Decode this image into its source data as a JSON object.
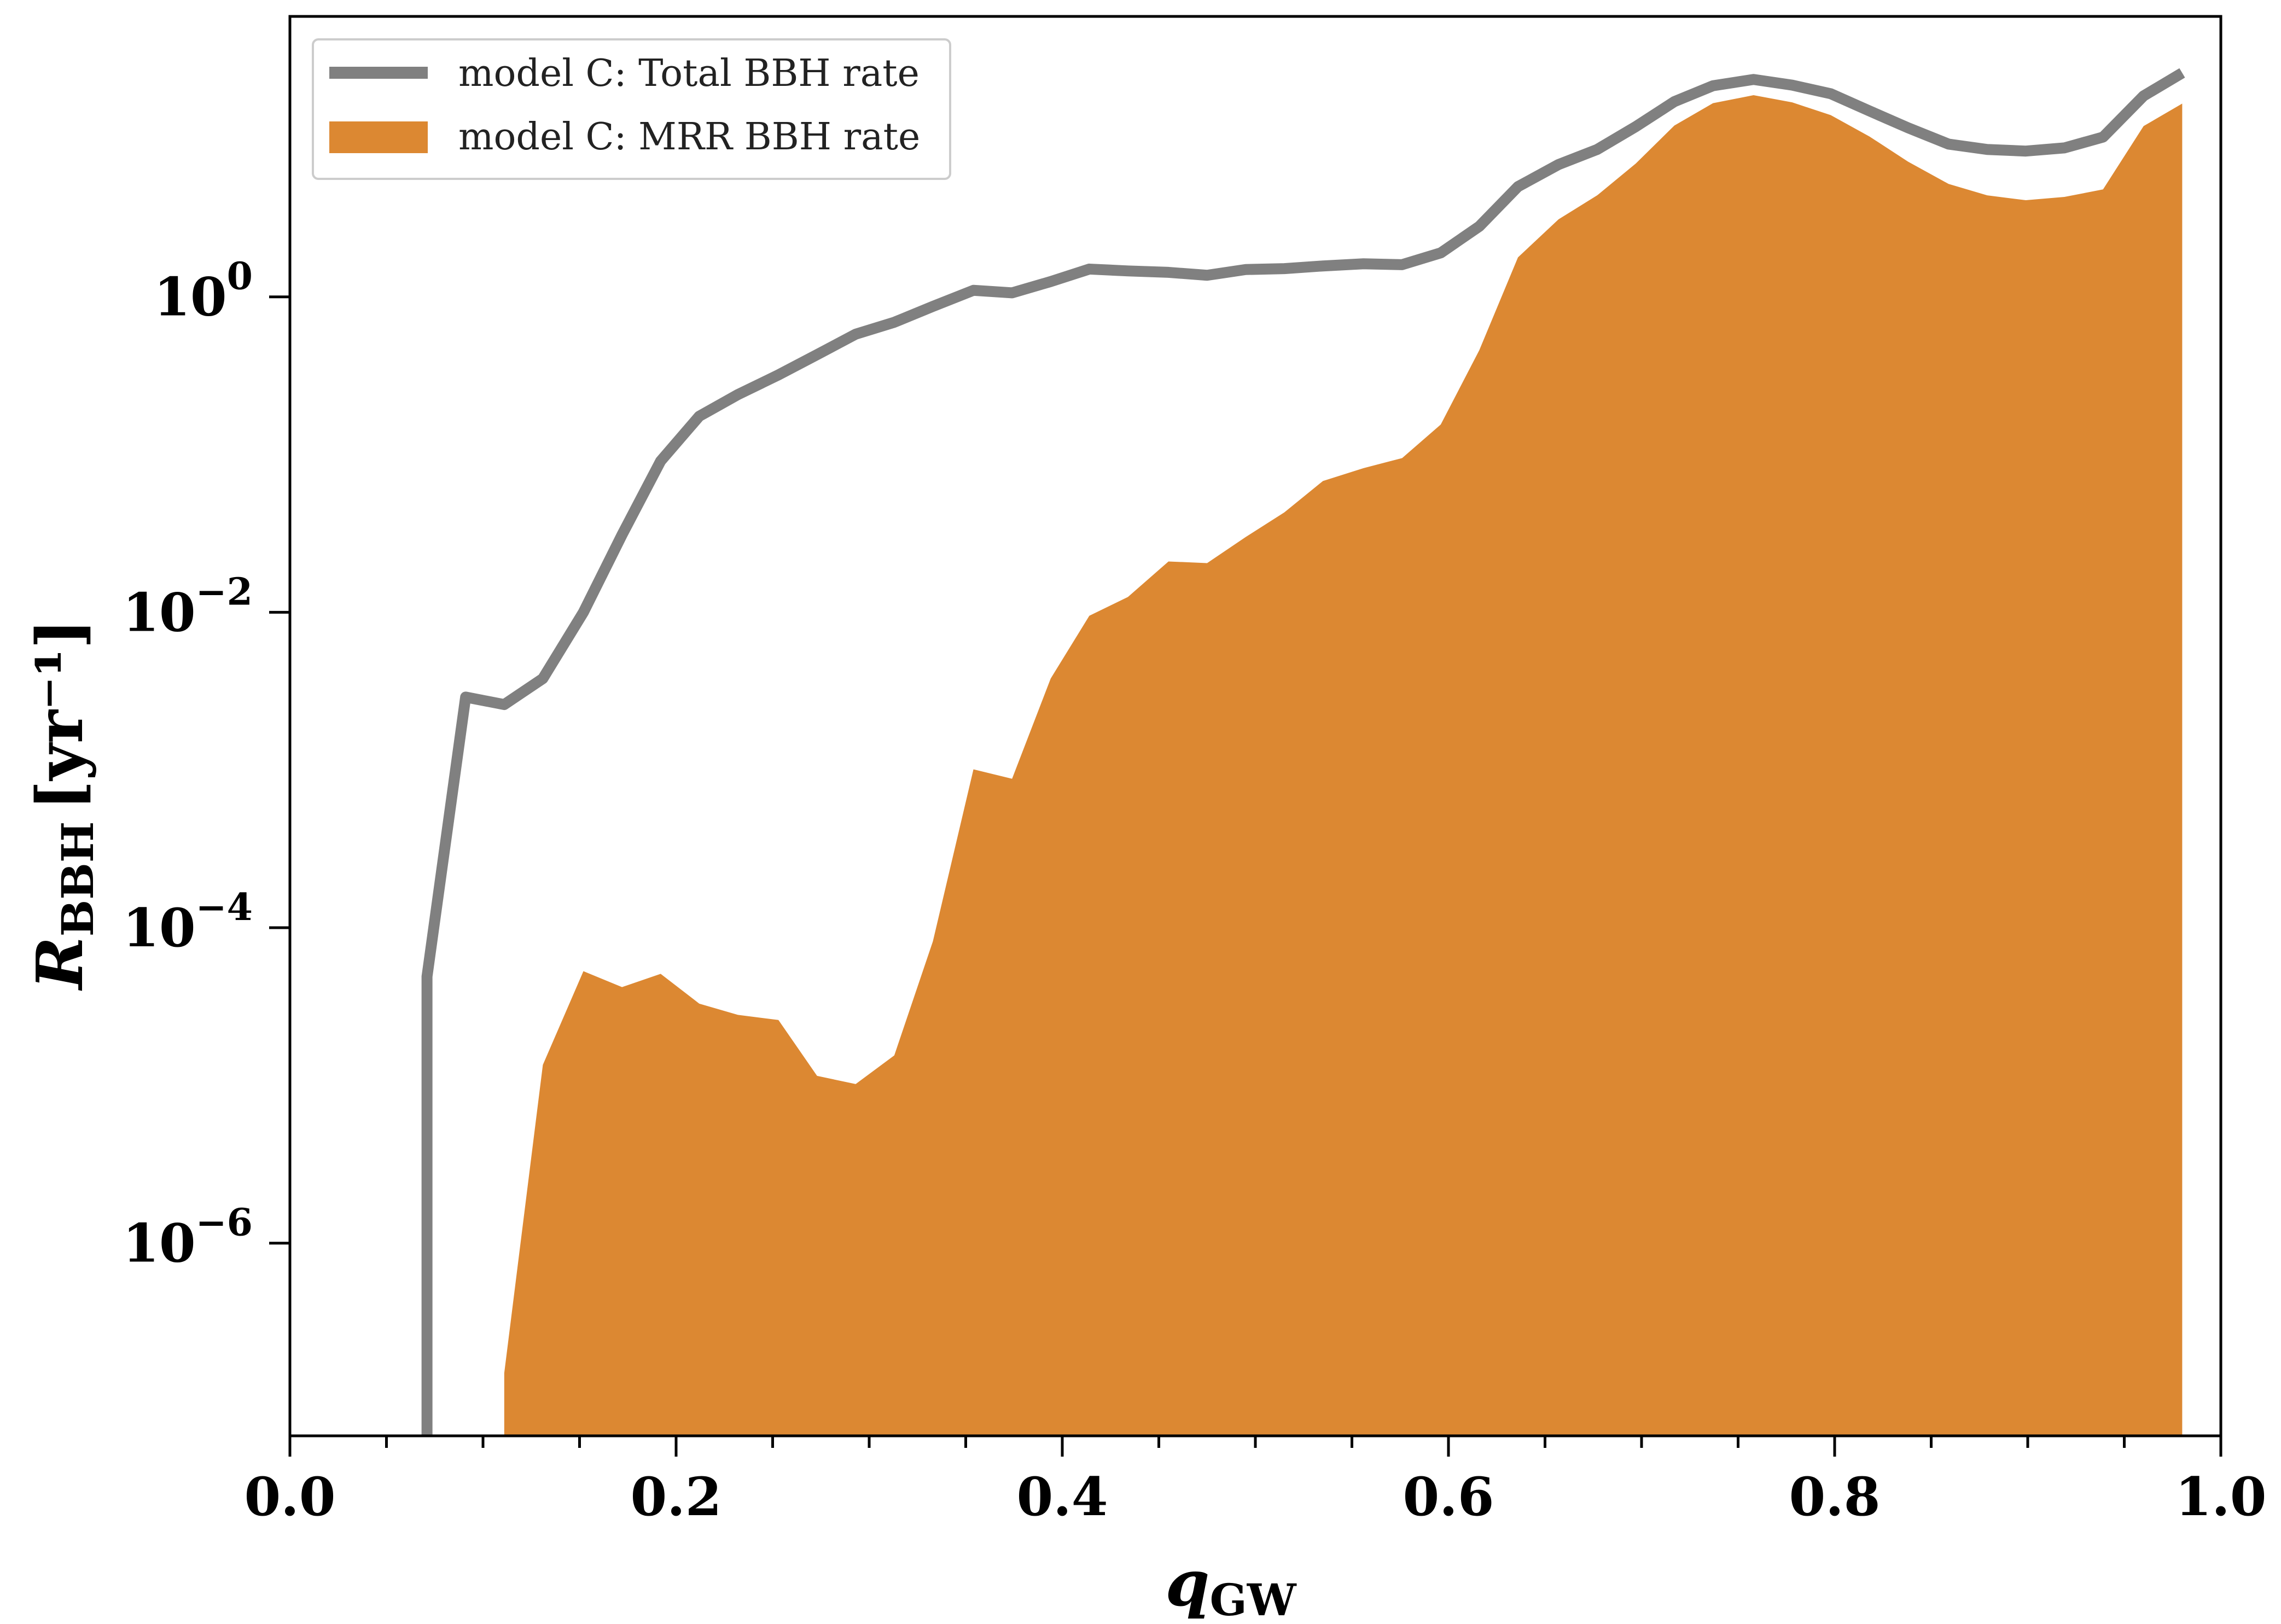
{
  "chart_data": {
    "type": "area",
    "xlabel": "q",
    "xlabel_sub": "GW",
    "ylabel": "R",
    "ylabel_sub": "BBH",
    "ylabel_unit": "[yr⁻¹]",
    "xlim": [
      0.0,
      1.0
    ],
    "ylim": [
      6e-08,
      60
    ],
    "yscale": "log",
    "x_ticks": [
      {
        "v": 0.0,
        "label": "0.0"
      },
      {
        "v": 0.2,
        "label": "0.2"
      },
      {
        "v": 0.4,
        "label": "0.4"
      },
      {
        "v": 0.6,
        "label": "0.6"
      },
      {
        "v": 0.8,
        "label": "0.8"
      },
      {
        "v": 1.0,
        "label": "1.0"
      }
    ],
    "y_ticks": [
      {
        "v": 1,
        "base": "10",
        "exp": "0"
      },
      {
        "v": 0.01,
        "base": "10",
        "exp": "−2"
      },
      {
        "v": 0.0001,
        "base": "10",
        "exp": "−4"
      },
      {
        "v": 1e-06,
        "base": "10",
        "exp": "−6"
      }
    ],
    "grid": false,
    "legend_position": "upper-left",
    "series": [
      {
        "name": "model C: Total BBH rate",
        "kind": "line",
        "color": "#808080",
        "points": [
          [
            0.071,
            6e-08
          ],
          [
            0.071,
            4.9e-05
          ],
          [
            0.091,
            0.0029
          ],
          [
            0.111,
            0.0026
          ],
          [
            0.131,
            0.0038
          ],
          [
            0.152,
            0.01
          ],
          [
            0.172,
            0.031
          ],
          [
            0.192,
            0.091
          ],
          [
            0.212,
            0.175
          ],
          [
            0.232,
            0.24
          ],
          [
            0.253,
            0.32
          ],
          [
            0.273,
            0.43
          ],
          [
            0.293,
            0.58
          ],
          [
            0.313,
            0.69
          ],
          [
            0.333,
            0.87
          ],
          [
            0.354,
            1.1
          ],
          [
            0.374,
            1.06
          ],
          [
            0.394,
            1.25
          ],
          [
            0.414,
            1.5
          ],
          [
            0.434,
            1.46
          ],
          [
            0.455,
            1.43
          ],
          [
            0.475,
            1.37
          ],
          [
            0.495,
            1.49
          ],
          [
            0.515,
            1.51
          ],
          [
            0.535,
            1.57
          ],
          [
            0.556,
            1.62
          ],
          [
            0.576,
            1.6
          ],
          [
            0.596,
            1.9
          ],
          [
            0.616,
            2.8
          ],
          [
            0.636,
            5.0
          ],
          [
            0.657,
            6.9
          ],
          [
            0.677,
            8.6
          ],
          [
            0.697,
            12.0
          ],
          [
            0.717,
            17.3
          ],
          [
            0.737,
            21.8
          ],
          [
            0.758,
            23.9
          ],
          [
            0.778,
            22.0
          ],
          [
            0.798,
            19.4
          ],
          [
            0.818,
            15.1
          ],
          [
            0.838,
            11.8
          ],
          [
            0.859,
            9.3
          ],
          [
            0.879,
            8.6
          ],
          [
            0.899,
            8.4
          ],
          [
            0.919,
            8.8
          ],
          [
            0.939,
            10.3
          ],
          [
            0.96,
            18.8
          ],
          [
            0.98,
            26.3
          ]
        ]
      },
      {
        "name": "model C: MRR BBH rate",
        "kind": "fill",
        "color": "#dc8832",
        "points": [
          [
            0.111,
            1.5e-07
          ],
          [
            0.131,
            1.35e-05
          ],
          [
            0.152,
            5.3e-05
          ],
          [
            0.172,
            4.2e-05
          ],
          [
            0.192,
            5.1e-05
          ],
          [
            0.212,
            3.3e-05
          ],
          [
            0.232,
            2.8e-05
          ],
          [
            0.253,
            2.6e-05
          ],
          [
            0.273,
            1.15e-05
          ],
          [
            0.293,
            1.02e-05
          ],
          [
            0.313,
            1.55e-05
          ],
          [
            0.333,
            8.2e-05
          ],
          [
            0.354,
            0.00101
          ],
          [
            0.374,
            0.00088
          ],
          [
            0.394,
            0.0038
          ],
          [
            0.414,
            0.0095
          ],
          [
            0.434,
            0.0125
          ],
          [
            0.455,
            0.021
          ],
          [
            0.475,
            0.0205
          ],
          [
            0.495,
            0.03
          ],
          [
            0.515,
            0.043
          ],
          [
            0.535,
            0.068
          ],
          [
            0.556,
            0.082
          ],
          [
            0.576,
            0.095
          ],
          [
            0.596,
            0.155
          ],
          [
            0.616,
            0.46
          ],
          [
            0.636,
            1.78
          ],
          [
            0.657,
            3.1
          ],
          [
            0.677,
            4.4
          ],
          [
            0.697,
            7.0
          ],
          [
            0.717,
            12.2
          ],
          [
            0.737,
            16.9
          ],
          [
            0.758,
            19.0
          ],
          [
            0.778,
            17.1
          ],
          [
            0.798,
            14.2
          ],
          [
            0.818,
            10.4
          ],
          [
            0.838,
            7.2
          ],
          [
            0.859,
            5.2
          ],
          [
            0.879,
            4.4
          ],
          [
            0.899,
            4.1
          ],
          [
            0.919,
            4.3
          ],
          [
            0.939,
            4.8
          ],
          [
            0.96,
            12.1
          ],
          [
            0.98,
            16.8
          ]
        ]
      }
    ]
  }
}
